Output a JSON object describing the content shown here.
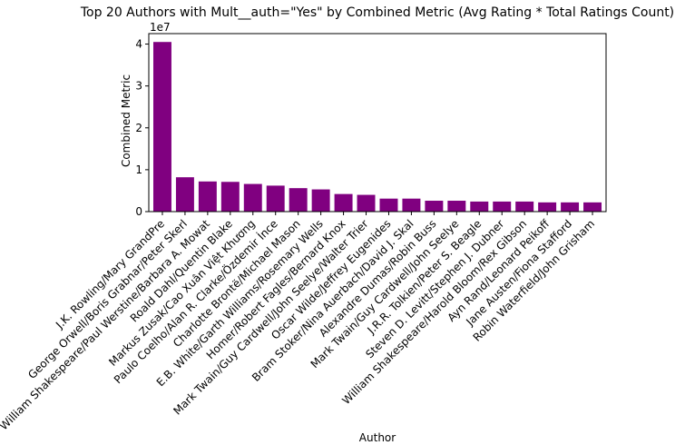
{
  "chart_data": {
    "type": "bar",
    "title": "Top 20 Authors with Mult__auth=\"Yes\" by Combined Metric (Avg Rating * Total Ratings Count)",
    "xlabel": "Author",
    "ylabel": "Combined Metric",
    "y_scale_label": "1e7",
    "y_multiplier": 10000000,
    "ylim": [
      0,
      4.25
    ],
    "yticks": [
      0,
      1,
      2,
      3,
      4
    ],
    "grid": false,
    "bar_color": "#800080",
    "categories": [
      "J.K. Rowling/Mary GrandPre",
      "George Orwell/Boris Grabnar/Peter Skerl",
      "William Shakespeare/Paul Werstine/Barbara A. Mowat",
      "Roald Dahl/Quentin Blake",
      "Markus Zusak/Cao Xuân Việt Khương",
      "Paulo Coelho/Alan R. Clarke/Özdemir İnce",
      "Charlotte Brontë/Michael Mason",
      "E.B. White/Garth Williams/Rosemary Wells",
      "Homer/Robert Fagles/Bernard Knox",
      "Mark Twain/Guy Cardwell/John Seelye/Walter Trier",
      "Oscar Wilde/Jeffrey Eugenides",
      "Bram Stoker/Nina Auerbach/David J. Skal",
      "Alexandre Dumas/Robin Buss",
      "Mark Twain/Guy Cardwell/John Seelye",
      "J.R.R. Tolkien/Peter S. Beagle",
      "Steven D. Levitt/Stephen J. Dubner",
      "William Shakespeare/Harold Bloom/Rex Gibson",
      "Ayn Rand/Leonard Peikoff",
      "Jane Austen/Fiona Stafford",
      "Robin Waterfield/John Grisham"
    ],
    "values": [
      4.05,
      0.82,
      0.72,
      0.71,
      0.66,
      0.62,
      0.56,
      0.53,
      0.42,
      0.4,
      0.31,
      0.31,
      0.26,
      0.26,
      0.24,
      0.24,
      0.24,
      0.22,
      0.22,
      0.22
    ]
  }
}
